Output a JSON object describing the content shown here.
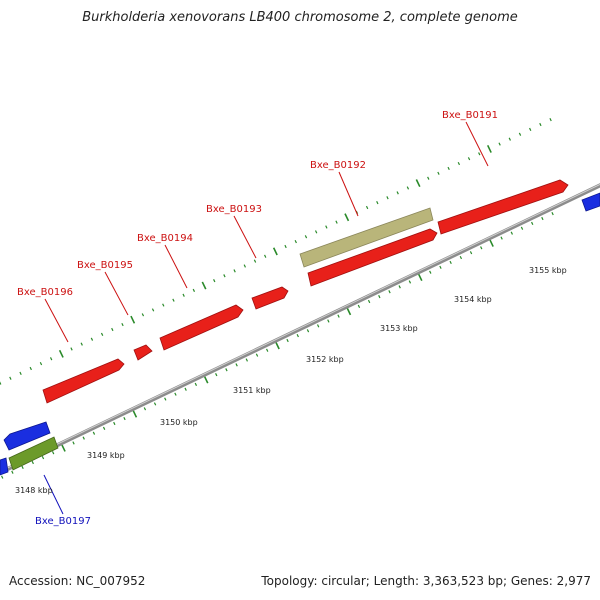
{
  "title": "Burkholderia xenovorans LB400 chromosome 2, complete genome",
  "footer": {
    "accession": "Accession: NC_007952",
    "summary": "Topology: circular; Length: 3,363,523 bp; Genes: 2,977"
  },
  "colors": {
    "backbone": "#8c8c8c",
    "forward_gene": "#e8201a",
    "reverse_gene": "#1a2ee0",
    "rna_olive": "#b9b57a",
    "rna_green": "#6c9a2a",
    "tick": "#2a8a2a",
    "label_forward": "#cc1111",
    "label_reverse": "#1111bb"
  },
  "scale": {
    "tick_labels": [
      "3148 kbp",
      "3149 kbp",
      "3150 kbp",
      "3151 kbp",
      "3152 kbp",
      "3153 kbp",
      "3154 kbp",
      "3155 kbp"
    ]
  },
  "genes": [
    {
      "name": "Bxe_B0191",
      "strand": "forward"
    },
    {
      "name": "Bxe_B0192",
      "strand": "forward"
    },
    {
      "name": "Bxe_B0193",
      "strand": "forward"
    },
    {
      "name": "Bxe_B0194",
      "strand": "forward"
    },
    {
      "name": "Bxe_B0195",
      "strand": "forward"
    },
    {
      "name": "Bxe_B0196",
      "strand": "forward"
    },
    {
      "name": "Bxe_B0197",
      "strand": "reverse"
    }
  ]
}
